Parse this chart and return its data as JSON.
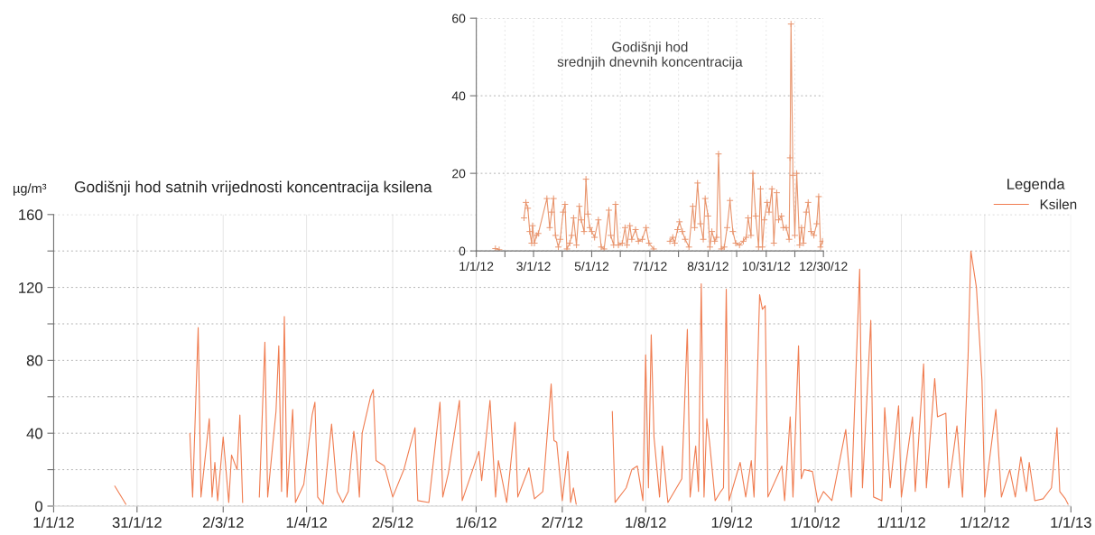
{
  "chart_data": [
    {
      "type": "line",
      "title": "Godišnji hod satnih vrijednosti koncentracija ksilena",
      "ylabel": "µg/m³",
      "legend_title": "Legenda",
      "legend": "top right",
      "grid": true,
      "marker": "none",
      "line_style": "solid",
      "xlim": [
        "2012-01-01",
        "2013-01-01"
      ],
      "xticks": [
        {
          "value": "2012-01-01",
          "label": "1/1/12"
        },
        {
          "value": "2012-01-31",
          "label": "31/1/12"
        },
        {
          "value": "2012-03-02",
          "label": "2/3/12"
        },
        {
          "value": "2012-04-01",
          "label": "1/4/12"
        },
        {
          "value": "2012-05-02",
          "label": "2/5/12"
        },
        {
          "value": "2012-06-01",
          "label": "1/6/12"
        },
        {
          "value": "2012-07-02",
          "label": "2/7/12"
        },
        {
          "value": "2012-08-01",
          "label": "1/8/12"
        },
        {
          "value": "2012-09-01",
          "label": "1/9/12"
        },
        {
          "value": "2012-10-01",
          "label": "1/10/12"
        },
        {
          "value": "2012-11-01",
          "label": "1/11/12"
        },
        {
          "value": "2012-12-01",
          "label": "1/12/12"
        },
        {
          "value": "2013-01-01",
          "label": "1/1/13"
        }
      ],
      "ylim": [
        0,
        160
      ],
      "yticks": [
        0,
        {
          "value": 20,
          "label": null
        },
        40,
        {
          "value": 60,
          "label": null
        },
        80,
        {
          "value": 100,
          "label": null
        },
        120,
        {
          "value": 140,
          "label": null
        },
        160
      ],
      "series": [
        {
          "name": "Ksilen",
          "color": "#f07c50",
          "x": [
            "2012-01-23",
            "2012-01-27",
            "2012-02-05",
            "2012-02-19",
            "2012-02-20",
            "2012-02-22",
            "2012-02-23",
            "2012-02-26",
            "2012-02-27",
            "2012-02-28",
            "2012-02-29",
            "2012-03-02",
            "2012-03-04",
            "2012-03-05",
            "2012-03-07",
            "2012-03-08",
            "2012-03-09",
            "2012-03-12",
            "2012-03-15",
            "2012-03-17",
            "2012-03-18",
            "2012-03-21",
            "2012-03-22",
            "2012-03-23",
            "2012-03-24",
            "2012-03-25",
            "2012-03-27",
            "2012-03-28",
            "2012-03-31",
            "2012-04-03",
            "2012-04-04",
            "2012-04-05",
            "2012-04-07",
            "2012-04-10",
            "2012-04-12",
            "2012-04-14",
            "2012-04-16",
            "2012-04-18",
            "2012-04-19",
            "2012-04-20",
            "2012-04-21",
            "2012-04-24",
            "2012-04-25",
            "2012-04-26",
            "2012-04-29",
            "2012-05-02",
            "2012-05-06",
            "2012-05-10",
            "2012-05-11",
            "2012-05-15",
            "2012-05-19",
            "2012-05-20",
            "2012-05-22",
            "2012-05-26",
            "2012-05-27",
            "2012-06-02",
            "2012-06-03",
            "2012-06-06",
            "2012-06-08",
            "2012-06-09",
            "2012-06-12",
            "2012-06-15",
            "2012-06-16",
            "2012-06-20",
            "2012-06-22",
            "2012-06-25",
            "2012-06-28",
            "2012-06-29",
            "2012-06-30",
            "2012-07-02",
            "2012-07-04",
            "2012-07-05",
            "2012-07-06",
            "2012-07-07",
            "2012-07-14",
            "2012-07-20",
            "2012-07-21",
            "2012-07-25",
            "2012-07-27",
            "2012-07-29",
            "2012-07-31",
            "2012-08-01",
            "2012-08-02",
            "2012-08-03",
            "2012-08-04",
            "2012-08-06",
            "2012-08-07",
            "2012-08-09",
            "2012-08-14",
            "2012-08-16",
            "2012-08-17",
            "2012-08-19",
            "2012-08-20",
            "2012-08-21",
            "2012-08-22",
            "2012-08-23",
            "2012-08-24",
            "2012-08-26",
            "2012-08-28",
            "2012-08-29",
            "2012-08-30",
            "2012-08-31",
            "2012-09-04",
            "2012-09-06",
            "2012-09-08",
            "2012-09-09",
            "2012-09-11",
            "2012-09-12",
            "2012-09-13",
            "2012-09-14",
            "2012-09-19",
            "2012-09-20",
            "2012-09-22",
            "2012-09-23",
            "2012-09-25",
            "2012-09-26",
            "2012-09-27",
            "2012-09-30",
            "2012-10-02",
            "2012-10-04",
            "2012-10-07",
            "2012-10-12",
            "2012-10-14",
            "2012-10-17",
            "2012-10-18",
            "2012-10-21",
            "2012-10-22",
            "2012-10-25",
            "2012-10-26",
            "2012-10-28",
            "2012-10-31",
            "2012-11-01",
            "2012-11-05",
            "2012-11-06",
            "2012-11-09",
            "2012-11-10",
            "2012-11-13",
            "2012-11-14",
            "2012-11-17",
            "2012-11-18",
            "2012-11-21",
            "2012-11-23",
            "2012-11-25",
            "2012-11-26",
            "2012-11-28",
            "2012-11-30",
            "2012-12-01",
            "2012-12-05",
            "2012-12-07",
            "2012-12-10",
            "2012-12-12",
            "2012-12-14",
            "2012-12-16",
            "2012-12-17",
            "2012-12-19",
            "2012-12-22",
            "2012-12-25",
            "2012-12-27",
            "2012-12-28",
            "2012-12-30",
            "2012-12-31"
          ],
          "values": [
            11,
            1,
            null,
            40,
            5,
            98,
            5,
            48,
            5,
            24,
            3,
            38,
            2,
            28,
            20,
            50,
            2,
            null,
            5,
            90,
            5,
            52,
            88,
            8,
            104,
            5,
            53,
            2,
            12,
            50,
            57,
            5,
            1,
            45,
            8,
            2,
            8,
            41,
            28,
            5,
            40,
            60,
            64,
            25,
            22,
            5,
            20,
            43,
            3,
            2,
            57,
            5,
            18,
            58,
            3,
            30,
            14,
            58,
            5,
            25,
            2,
            46,
            5,
            21,
            4,
            8,
            67,
            36,
            35,
            3,
            30,
            2,
            10,
            1,
            null,
            52,
            2,
            10,
            20,
            22,
            3,
            83,
            10,
            94,
            38,
            5,
            33,
            2,
            15,
            97,
            5,
            33,
            8,
            122,
            5,
            48,
            35,
            3,
            8,
            10,
            119,
            3,
            24,
            5,
            25,
            5,
            116,
            108,
            110,
            5,
            22,
            3,
            49,
            5,
            88,
            15,
            20,
            19,
            2,
            8,
            3,
            42,
            5,
            130,
            10,
            102,
            5,
            3,
            54,
            10,
            55,
            5,
            49,
            8,
            78,
            10,
            70,
            49,
            51,
            10,
            44,
            5,
            82,
            140,
            120,
            69,
            5,
            53,
            5,
            20,
            5,
            27,
            8,
            24,
            3,
            4,
            10,
            43,
            8,
            4,
            1
          ]
        }
      ]
    },
    {
      "type": "line",
      "title": "Godišnji hod\nsrednjih dnevnih koncentracija",
      "grid": true,
      "marker": "cross",
      "line_style": "solid",
      "xlim": [
        "2012-01-01",
        "2012-12-30"
      ],
      "xticks": [
        {
          "value": "2012-01-01",
          "label": "1/1/12"
        },
        {
          "value": "2012-01-31",
          "label": null
        },
        {
          "value": "2012-03-01",
          "label": "3/1/12"
        },
        {
          "value": "2012-03-31",
          "label": null
        },
        {
          "value": "2012-05-01",
          "label": "5/1/12"
        },
        {
          "value": "2012-05-31",
          "label": null
        },
        {
          "value": "2012-07-01",
          "label": "7/1/12"
        },
        {
          "value": "2012-07-31",
          "label": null
        },
        {
          "value": "2012-08-31",
          "label": "8/31/12"
        },
        {
          "value": "2012-09-30",
          "label": null
        },
        {
          "value": "2012-10-31",
          "label": "10/31/12"
        },
        {
          "value": "2012-11-30",
          "label": null
        },
        {
          "value": "2012-12-30",
          "label": "12/30/12"
        }
      ],
      "ylim": [
        0,
        60
      ],
      "yticks": [
        0,
        20,
        40,
        60
      ],
      "series": [
        {
          "color": "#e8946c",
          "x": [
            "2012-01-21",
            "2012-01-25",
            "2012-02-05",
            "2012-02-20",
            "2012-02-22",
            "2012-02-24",
            "2012-02-26",
            "2012-02-28",
            "2012-02-29",
            "2012-03-02",
            "2012-03-04",
            "2012-03-06",
            "2012-03-15",
            "2012-03-18",
            "2012-03-20",
            "2012-03-22",
            "2012-03-24",
            "2012-03-27",
            "2012-03-29",
            "2012-04-01",
            "2012-04-03",
            "2012-04-05",
            "2012-04-08",
            "2012-04-10",
            "2012-04-12",
            "2012-04-15",
            "2012-04-18",
            "2012-04-20",
            "2012-04-23",
            "2012-04-25",
            "2012-04-27",
            "2012-04-29",
            "2012-05-01",
            "2012-05-04",
            "2012-05-08",
            "2012-05-11",
            "2012-05-14",
            "2012-05-19",
            "2012-05-21",
            "2012-05-24",
            "2012-05-26",
            "2012-05-29",
            "2012-06-02",
            "2012-06-05",
            "2012-06-07",
            "2012-06-10",
            "2012-06-12",
            "2012-06-16",
            "2012-06-19",
            "2012-06-23",
            "2012-06-27",
            "2012-06-30",
            "2012-07-05",
            "2012-07-15",
            "2012-07-22",
            "2012-07-25",
            "2012-07-27",
            "2012-07-30",
            "2012-08-01",
            "2012-08-04",
            "2012-08-07",
            "2012-08-11",
            "2012-08-15",
            "2012-08-17",
            "2012-08-20",
            "2012-08-23",
            "2012-08-26",
            "2012-08-28",
            "2012-08-31",
            "2012-09-02",
            "2012-09-04",
            "2012-09-07",
            "2012-09-09",
            "2012-09-11",
            "2012-09-14",
            "2012-09-17",
            "2012-09-20",
            "2012-09-23",
            "2012-09-26",
            "2012-09-29",
            "2012-10-03",
            "2012-10-07",
            "2012-10-10",
            "2012-10-12",
            "2012-10-15",
            "2012-10-17",
            "2012-10-20",
            "2012-10-23",
            "2012-10-25",
            "2012-10-27",
            "2012-10-29",
            "2012-11-01",
            "2012-11-03",
            "2012-11-06",
            "2012-11-08",
            "2012-11-11",
            "2012-11-13",
            "2012-11-16",
            "2012-11-18",
            "2012-11-21",
            "2012-11-24",
            "2012-11-25",
            "2012-11-26",
            "2012-11-28",
            "2012-11-30",
            "2012-12-02",
            "2012-12-05",
            "2012-12-07",
            "2012-12-09",
            "2012-12-12",
            "2012-12-14",
            "2012-12-17",
            "2012-12-20",
            "2012-12-23",
            "2012-12-25",
            "2012-12-27",
            "2012-12-29"
          ],
          "values": [
            0.6,
            0.3,
            null,
            8.5,
            12.5,
            11,
            5,
            2,
            6.5,
            2,
            4,
            4.5,
            13.5,
            6,
            10,
            13.5,
            4,
            1,
            3,
            10,
            12,
            0.5,
            2,
            4,
            8.5,
            1.5,
            11.5,
            8,
            5,
            18.5,
            9.5,
            6,
            5,
            3.5,
            8,
            1,
            0.5,
            10.5,
            4,
            1.5,
            12,
            1.5,
            2,
            6,
            1.5,
            6.5,
            3,
            5.5,
            2.5,
            3,
            6,
            2,
            0.5,
            null,
            2.5,
            3.5,
            2,
            5.5,
            7.5,
            5,
            3,
            1,
            11.5,
            6,
            17.5,
            7,
            3,
            13.5,
            9,
            1,
            5,
            2.5,
            3.5,
            25,
            0.5,
            1,
            6,
            13,
            5,
            2,
            1.5,
            2.5,
            3.5,
            8.5,
            4,
            20,
            9,
            1,
            16,
            1,
            8,
            12.5,
            10,
            16,
            2,
            15,
            8,
            9,
            6,
            6,
            3,
            24,
            58.5,
            19.5,
            4,
            20,
            1.5,
            6,
            2,
            10,
            12.5,
            5,
            4,
            7,
            14,
            1,
            2.5
          ]
        }
      ]
    }
  ]
}
